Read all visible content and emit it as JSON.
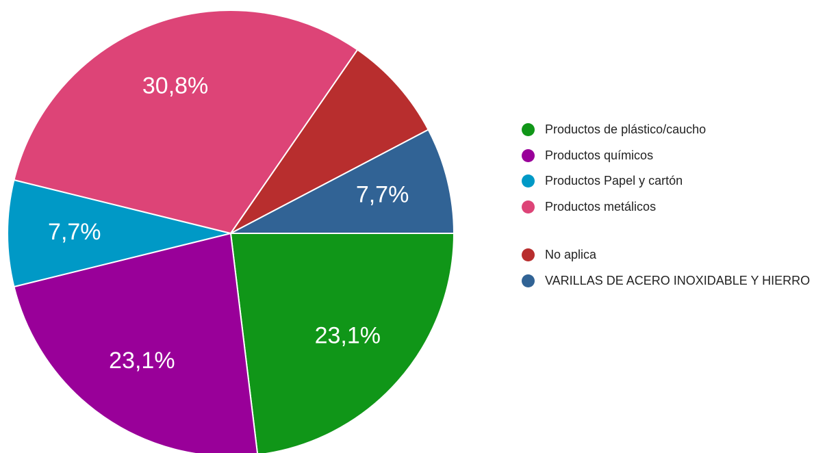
{
  "chart_data": {
    "type": "pie",
    "categories": [
      "Productos de plástico/caucho",
      "Productos químicos",
      "Productos Papel y cartón",
      "Productos metálicos",
      "No aplica",
      "VARILLAS DE ACERO INOXIDABLE Y HIERRO"
    ],
    "values": [
      23.1,
      23.1,
      7.7,
      30.8,
      7.7,
      7.7
    ],
    "value_labels": [
      "23,1%",
      "23,1%",
      "7,7%",
      "30,8%",
      null,
      "7,7%"
    ],
    "colors": [
      "#109618",
      "#990099",
      "#0099c6",
      "#dd4477",
      "#b82e2e",
      "#316395"
    ],
    "legend": "right"
  }
}
